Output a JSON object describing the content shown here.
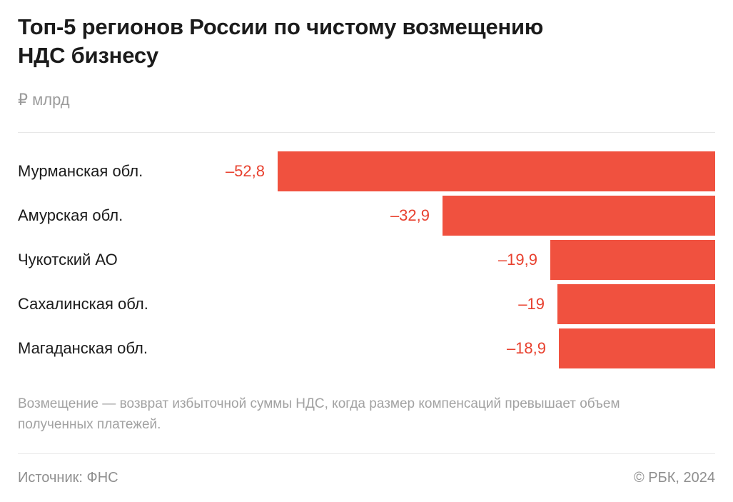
{
  "header": {
    "title": "Топ-5 регионов России по чистому возмещению НДС бизнесу",
    "unit": "₽ млрд"
  },
  "chart_data": {
    "type": "bar",
    "orientation": "horizontal",
    "title": "Топ-5 регионов России по чистому возмещению НДС бизнесу",
    "unit_label": "₽ млрд",
    "categories": [
      "Мурманская обл.",
      "Амурская обл.",
      "Чукотский АО",
      "Сахалинская обл.",
      "Магаданская обл."
    ],
    "values": [
      -52.8,
      -32.9,
      -19.9,
      -19,
      -18.9
    ],
    "value_labels": [
      "–52,8",
      "–32,9",
      "–19,9",
      "–19",
      "–18,9"
    ],
    "bar_color": "#f0513f",
    "value_label_color": "#e8402e",
    "xlim": [
      -52.8,
      0
    ],
    "bars_aligned": "right",
    "grid": false,
    "legend": false
  },
  "footnote": "Возмещение — возврат избыточной суммы НДС, когда размер компенсаций превышает объем полученных платежей.",
  "footer": {
    "source": "Источник: ФНС",
    "copyright": "© РБК, 2024"
  }
}
